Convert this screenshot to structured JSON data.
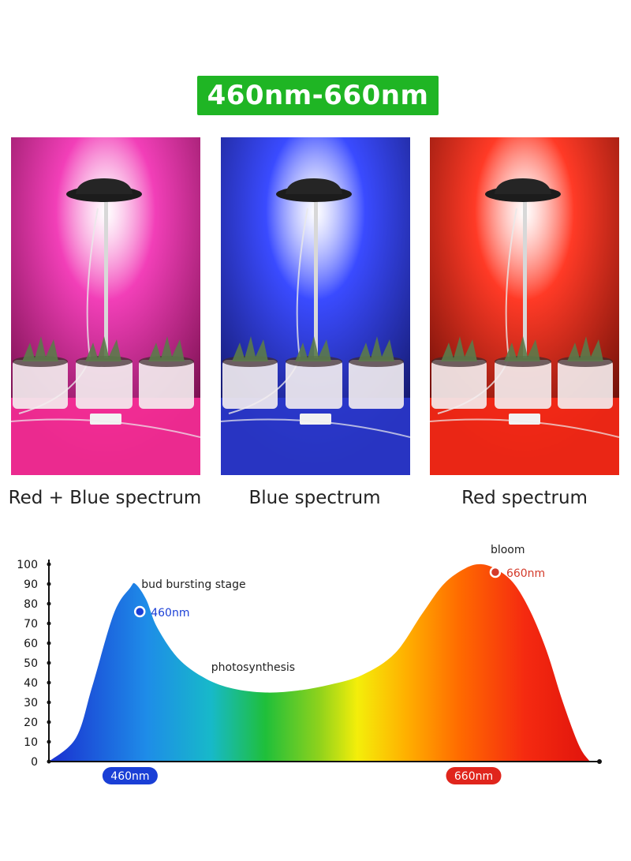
{
  "header": {
    "title": "460nm-660nm"
  },
  "photos": [
    {
      "caption": "Red + Blue spectrum",
      "color": "#f23fb8",
      "bg_dark": "#7a1050",
      "floor": "#ff2f9a"
    },
    {
      "caption": "Blue spectrum",
      "color": "#3a4bff",
      "bg_dark": "#151a70",
      "floor": "#2c3ad0"
    },
    {
      "caption": "Red spectrum",
      "color": "#ff3a26",
      "bg_dark": "#701008",
      "floor": "#ff2a18"
    }
  ],
  "chart_data": {
    "type": "area",
    "title": "",
    "xlabel": "",
    "ylabel": "",
    "ylim": [
      0,
      100
    ],
    "yticks": [
      "0",
      "10",
      "20",
      "30",
      "40",
      "50",
      "60",
      "70",
      "80",
      "90",
      "100"
    ],
    "x_markers": [
      {
        "label": "460nm",
        "color": "#1a3fd6"
      },
      {
        "label": "660nm",
        "color": "#e0251c"
      }
    ],
    "points": [
      {
        "label": "460nm",
        "y": 76,
        "color": "#1a3fd6"
      },
      {
        "label": "660nm",
        "y": 96,
        "color": "#d43a2a"
      }
    ],
    "annotations": [
      "bud bursting stage",
      "photosynthesis",
      "bloom"
    ],
    "curve": [
      [
        0.0,
        0
      ],
      [
        0.05,
        12
      ],
      [
        0.08,
        38
      ],
      [
        0.12,
        75
      ],
      [
        0.15,
        88
      ],
      [
        0.16,
        90
      ],
      [
        0.18,
        82
      ],
      [
        0.2,
        68
      ],
      [
        0.24,
        52
      ],
      [
        0.29,
        42
      ],
      [
        0.34,
        37
      ],
      [
        0.4,
        35
      ],
      [
        0.46,
        36
      ],
      [
        0.52,
        39
      ],
      [
        0.58,
        44
      ],
      [
        0.64,
        55
      ],
      [
        0.69,
        75
      ],
      [
        0.73,
        90
      ],
      [
        0.77,
        98
      ],
      [
        0.8,
        100
      ],
      [
        0.83,
        97
      ],
      [
        0.86,
        90
      ],
      [
        0.89,
        76
      ],
      [
        0.92,
        56
      ],
      [
        0.95,
        30
      ],
      [
        0.98,
        8
      ],
      [
        1.0,
        0
      ]
    ]
  }
}
